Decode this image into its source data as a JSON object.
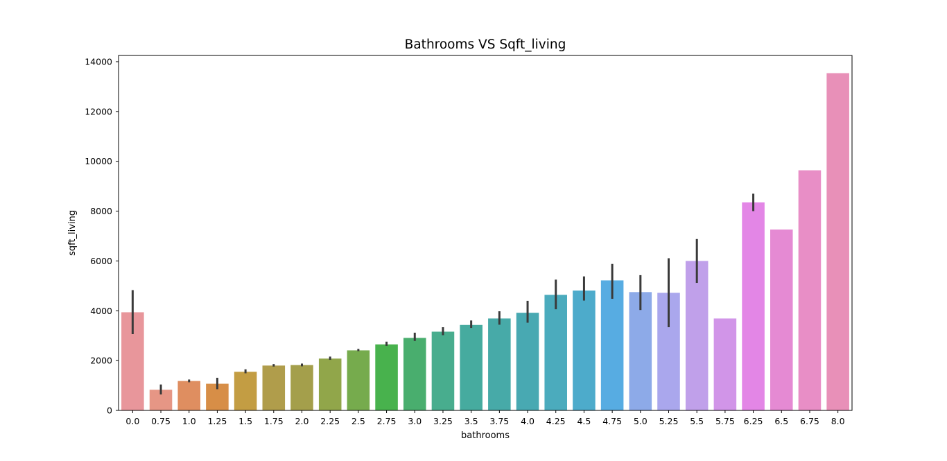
{
  "chart_data": {
    "type": "bar",
    "title": "Bathrooms VS Sqft_living",
    "xlabel": "bathrooms",
    "ylabel": "sqft_living",
    "ylim": [
      0,
      14250
    ],
    "yticks": [
      0,
      2000,
      4000,
      6000,
      8000,
      10000,
      12000,
      14000
    ],
    "ytick_labels": [
      "0",
      "2000",
      "4000",
      "6000",
      "8000",
      "10000",
      "12000",
      "14000"
    ],
    "grid": false,
    "legend": "none",
    "categories": [
      "0.0",
      "0.75",
      "1.0",
      "1.25",
      "1.5",
      "1.75",
      "2.0",
      "2.25",
      "2.5",
      "2.75",
      "3.0",
      "3.25",
      "3.5",
      "3.75",
      "4.0",
      "4.25",
      "4.5",
      "4.75",
      "5.0",
      "5.25",
      "5.5",
      "5.75",
      "6.25",
      "6.5",
      "6.75",
      "8.0"
    ],
    "values": [
      3940,
      830,
      1180,
      1070,
      1550,
      1800,
      1820,
      2080,
      2410,
      2650,
      2910,
      3160,
      3430,
      3690,
      3920,
      4640,
      4810,
      5220,
      4750,
      4720,
      6000,
      3690,
      8350,
      7260,
      9640,
      13540
    ],
    "error_low": [
      3060,
      640,
      1130,
      850,
      1490,
      1760,
      1770,
      2030,
      2380,
      2590,
      2790,
      3020,
      3310,
      3440,
      3520,
      4060,
      4410,
      4480,
      4030,
      3340,
      5120,
      null,
      8000,
      null,
      null,
      null
    ],
    "error_high": [
      4830,
      1040,
      1240,
      1310,
      1650,
      1860,
      1880,
      2160,
      2470,
      2760,
      3120,
      3340,
      3610,
      3980,
      4400,
      5250,
      5380,
      5880,
      5430,
      6110,
      6880,
      null,
      8700,
      null,
      null,
      null
    ],
    "colors": [
      "#e8969b",
      "#e69685",
      "#df8e60",
      "#d78e47",
      "#c39d43",
      "#b09d4b",
      "#a49f4b",
      "#91a64a",
      "#76ab4d",
      "#48b24d",
      "#49ae6e",
      "#48ad8e",
      "#46ab9f",
      "#47aaa8",
      "#48a9b2",
      "#4babbd",
      "#4dabcb",
      "#57ace2",
      "#8daae8",
      "#aaa7ed",
      "#c0a0ea",
      "#d195e8",
      "#e386e6",
      "#e58ad3",
      "#e88ec6",
      "#e890b8"
    ],
    "error_color": "#3a3a3a"
  }
}
